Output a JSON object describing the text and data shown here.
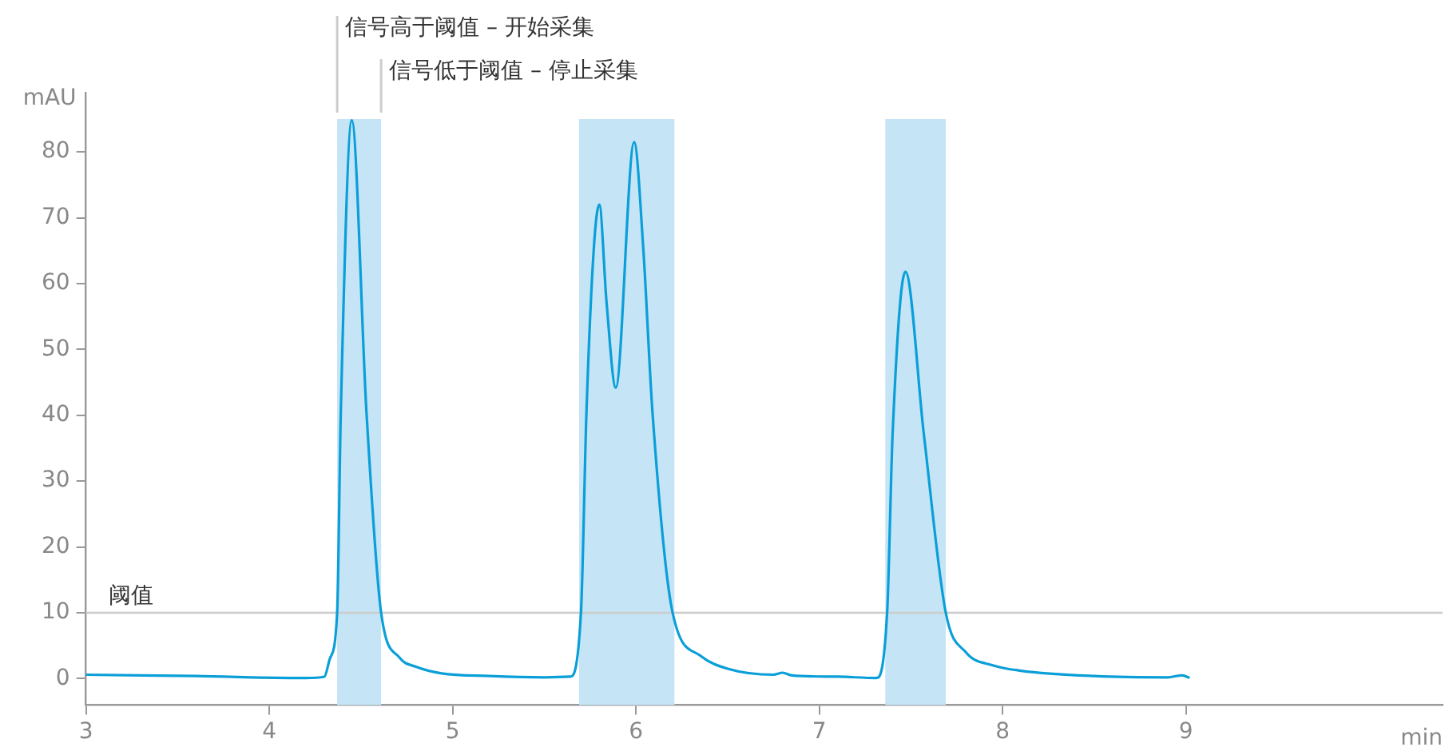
{
  "chart_data": {
    "type": "line",
    "xlabel": "min",
    "ylabel": "mAU",
    "x": [
      3.0,
      3.3,
      3.6,
      3.9,
      4.2,
      4.3,
      4.33,
      4.37,
      4.39,
      4.45,
      4.53,
      4.61,
      4.71,
      4.8,
      4.94,
      5.2,
      5.5,
      5.64,
      5.7,
      5.73,
      5.77,
      5.8,
      5.84,
      5.89,
      5.99,
      6.04,
      6.09,
      6.2,
      6.35,
      6.5,
      6.75,
      6.8,
      6.85,
      7.1,
      7.31,
      7.37,
      7.4,
      7.47,
      7.57,
      7.69,
      7.8,
      7.95,
      8.1,
      8.5,
      8.9,
      8.98,
      9.02
    ],
    "series": [
      {
        "color": "#0a9fd8",
        "values": [
          0.6,
          0.5,
          0.4,
          0.2,
          0.1,
          0.3,
          3,
          10,
          40.5,
          84.8,
          40.5,
          10,
          3.2,
          1.8,
          0.8,
          0.4,
          0.2,
          0.3,
          10,
          40.5,
          65.3,
          72,
          57,
          44.2,
          81.5,
          65.3,
          40.5,
          10,
          3.5,
          1.5,
          0.6,
          0.9,
          0.5,
          0.3,
          0.1,
          10,
          37.2,
          61.8,
          37.2,
          10,
          4,
          2,
          1.2,
          0.4,
          0.2,
          0.5,
          0.1
        ]
      }
    ],
    "xlim": [
      3,
      10.4
    ],
    "xticks": [
      3,
      4,
      5,
      6,
      7,
      8,
      9
    ],
    "ylim": [
      -4,
      89
    ],
    "yticks": [
      0,
      10,
      20,
      30,
      40,
      50,
      60,
      70,
      80
    ],
    "bands": [
      {
        "axis": "x",
        "from": 4.37,
        "to": 4.61,
        "color": "#c5e4f5"
      },
      {
        "axis": "x",
        "from": 5.69,
        "to": 6.21,
        "color": "#c5e4f5"
      },
      {
        "axis": "x",
        "from": 7.36,
        "to": 7.69,
        "color": "#c5e4f5"
      }
    ],
    "ref_lines": [
      {
        "axis": "y",
        "value": 10,
        "label": "阈值",
        "color": "#cccccc"
      }
    ],
    "annotations": [
      {
        "text": "信号高于阈值 – 开始采集",
        "x": 4.37,
        "y": 85
      },
      {
        "text": "信号低于阈值 – 停止采集",
        "x": 4.61,
        "y": 85
      }
    ],
    "grid": false,
    "legend": false,
    "marker": "none",
    "line_style": "solid"
  }
}
